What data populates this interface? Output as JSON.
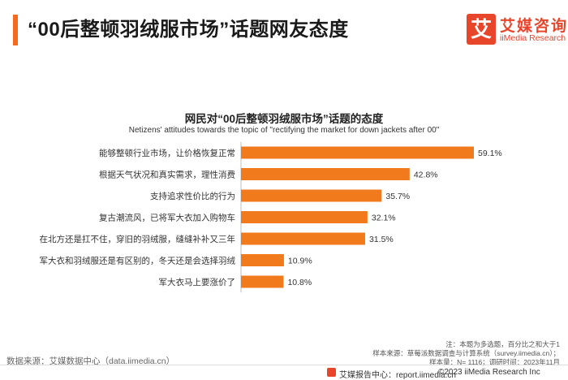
{
  "colors": {
    "accent": "#f26b21",
    "bar": "#f07a1c",
    "logo": "#e8462b"
  },
  "header": {
    "title": "“00后整顿羽绒服市场”话题网友态度"
  },
  "logo": {
    "box_char": "艾",
    "name": "艾媒咨询",
    "sub": "iiMedia Research"
  },
  "chart_data": {
    "type": "bar",
    "orientation": "horizontal",
    "title": "网民对“00后整顿羽绒服市场”话题的态度",
    "subtitle": "Netizens' attitudes towards the topic of \"rectifying the market for down jackets after 00\"",
    "categories": [
      "能够整顿行业市场，让价格恢复正常",
      "根据天气状况和真实需求，理性消费",
      "支持追求性价比的行为",
      "复古潮流风，已将军大衣加入购物车",
      "在北方还是扛不住，穿旧的羽绒服，缝缝补补又三年",
      "军大衣和羽绒服还是有区别的，冬天还是会选择羽绒",
      "军大衣马上要涨价了"
    ],
    "values": [
      59.1,
      42.8,
      35.7,
      32.1,
      31.5,
      10.9,
      10.8
    ],
    "value_labels": [
      "59.1%",
      "42.8%",
      "35.7%",
      "32.1%",
      "31.5%",
      "10.9%",
      "10.8%"
    ],
    "unit": "%",
    "xlim": [
      0,
      59.1
    ],
    "grid": false,
    "legend": "none"
  },
  "notes": {
    "line1": "注：本题为多选题，百分比之和大于1",
    "line2": "样本来源：草莓派数据调查与计算系统（survey.iimedia.cn）；",
    "line3": "样本量：N= 1116；调研时间：2023年11月"
  },
  "source": "数据来源：艾媒数据中心（data.iimedia.cn）",
  "footer": {
    "site": "艾媒报告中心：report.iimedia.cn",
    "copyright": "©2023  iiMedia Research  Inc"
  }
}
